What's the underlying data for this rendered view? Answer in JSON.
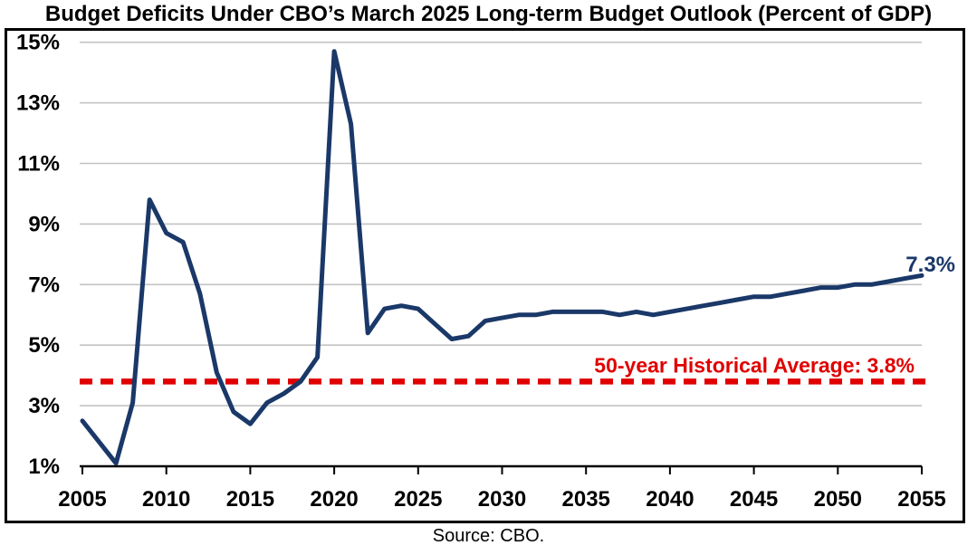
{
  "page": {
    "title": "Budget Deficits Under CBO’s March 2025 Long-term Budget Outlook (Percent of GDP)",
    "source": "Source: CBO."
  },
  "chart_data": {
    "type": "line",
    "title": "Budget Deficits Under CBO’s March 2025 Long-term Budget Outlook (Percent of GDP)",
    "xlabel": "",
    "ylabel": "Percent of GDP",
    "xlim": [
      2005,
      2055
    ],
    "ylim": [
      1,
      15
    ],
    "grid": "horizontal",
    "x_ticks": [
      2005,
      2010,
      2015,
      2020,
      2025,
      2030,
      2035,
      2040,
      2045,
      2050,
      2055
    ],
    "y_ticks": [
      {
        "value": 15,
        "label": "15%"
      },
      {
        "value": 13,
        "label": "13%"
      },
      {
        "value": 11,
        "label": "11%"
      },
      {
        "value": 9,
        "label": "9%"
      },
      {
        "value": 7,
        "label": "7%"
      },
      {
        "value": 5,
        "label": "5%"
      },
      {
        "value": 3,
        "label": "3%"
      },
      {
        "value": 1,
        "label": "1%"
      }
    ],
    "x": [
      2005,
      2006,
      2007,
      2008,
      2009,
      2010,
      2011,
      2012,
      2013,
      2014,
      2015,
      2016,
      2017,
      2018,
      2019,
      2020,
      2021,
      2022,
      2023,
      2024,
      2025,
      2026,
      2027,
      2028,
      2029,
      2030,
      2031,
      2032,
      2033,
      2034,
      2035,
      2036,
      2037,
      2038,
      2039,
      2040,
      2041,
      2042,
      2043,
      2044,
      2045,
      2046,
      2047,
      2048,
      2049,
      2050,
      2051,
      2052,
      2053,
      2054,
      2055
    ],
    "series": [
      {
        "name": "Budget deficit (percent of GDP)",
        "color": "#1A3868",
        "values": [
          2.5,
          1.8,
          1.1,
          3.1,
          9.8,
          8.7,
          8.4,
          6.7,
          4.1,
          2.8,
          2.4,
          3.1,
          3.4,
          3.8,
          4.6,
          14.7,
          12.3,
          5.4,
          6.2,
          6.3,
          6.2,
          5.7,
          5.2,
          5.3,
          5.8,
          5.9,
          6.0,
          6.0,
          6.1,
          6.1,
          6.1,
          6.1,
          6.0,
          6.1,
          6.0,
          6.1,
          6.2,
          6.3,
          6.4,
          6.5,
          6.6,
          6.6,
          6.7,
          6.8,
          6.9,
          6.9,
          7.0,
          7.0,
          7.1,
          7.2,
          7.3
        ]
      }
    ],
    "reference_line": {
      "value": 3.8,
      "label": "50-year Historical Average: 3.8%",
      "color": "#E00000",
      "style": "dashed"
    },
    "end_label": "7.3%",
    "legend_position": "none",
    "colors": {
      "line": "#1A3868",
      "reference": "#E00000",
      "gridline": "#C3C3C3",
      "axis": "#000000",
      "background": "#FFFFFF"
    },
    "source": "Source: CBO."
  }
}
